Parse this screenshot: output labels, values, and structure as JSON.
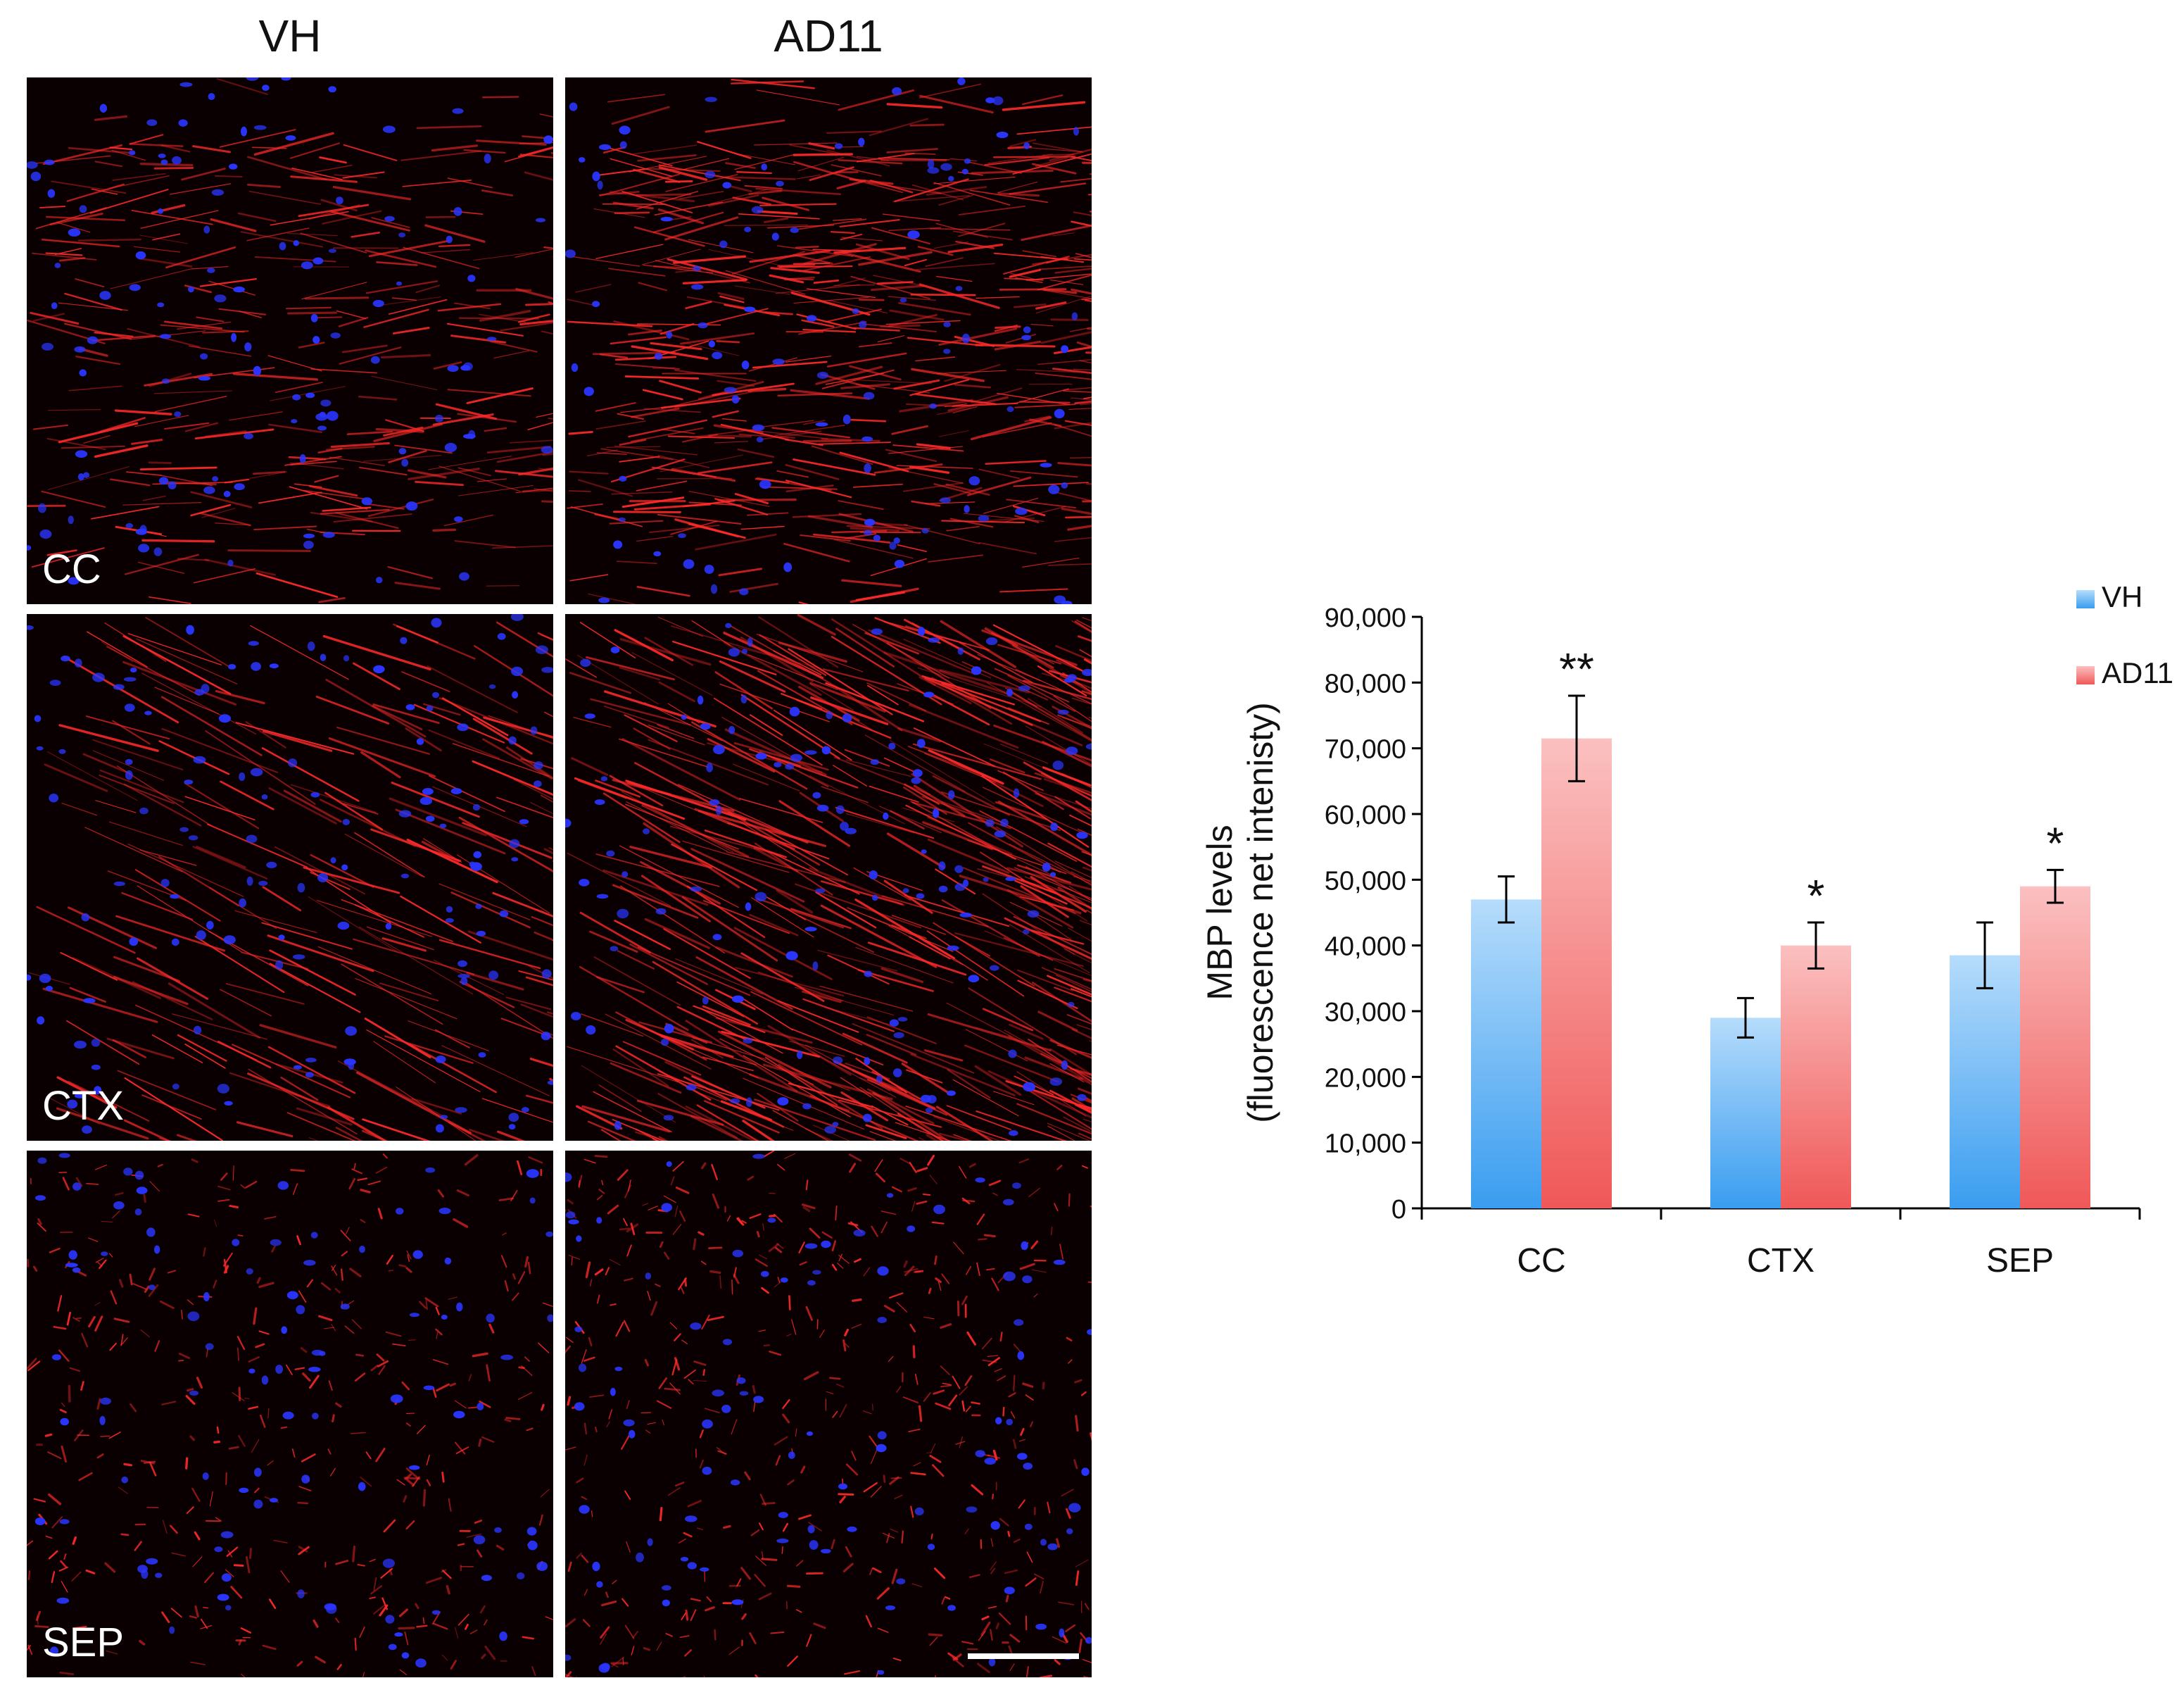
{
  "micrographs": {
    "columns": [
      "VH",
      "AD11"
    ],
    "rows": [
      "CC",
      "CTX",
      "SEP"
    ],
    "stain_colors": {
      "fiber": "#ff2a2a",
      "nuclei": "#2a35ff",
      "background": "#0a0002"
    },
    "tiles": [
      {
        "row": "CC",
        "column": "VH",
        "fiber_density": 0.55,
        "nuclei_density": 0.7,
        "pattern": "horizontal-band"
      },
      {
        "row": "CC",
        "column": "AD11",
        "fiber_density": 0.95,
        "nuclei_density": 0.6,
        "pattern": "horizontal-band"
      },
      {
        "row": "CTX",
        "column": "VH",
        "fiber_density": 0.35,
        "nuclei_density": 0.8,
        "pattern": "diagonal"
      },
      {
        "row": "CTX",
        "column": "AD11",
        "fiber_density": 0.8,
        "nuclei_density": 0.8,
        "pattern": "diagonal"
      },
      {
        "row": "SEP",
        "column": "VH",
        "fiber_density": 0.6,
        "nuclei_density": 0.6,
        "pattern": "dotted"
      },
      {
        "row": "SEP",
        "column": "AD11",
        "fiber_density": 0.75,
        "nuclei_density": 0.6,
        "pattern": "dotted"
      }
    ]
  },
  "chart_data": {
    "type": "bar",
    "categories": [
      "CC",
      "CTX",
      "SEP"
    ],
    "series": [
      {
        "name": "VH",
        "values": [
          47000,
          29000,
          38500
        ],
        "errors": [
          3500,
          3000,
          5000
        ],
        "color": "#3a9df0",
        "color_light": "#b6dcfb"
      },
      {
        "name": "AD11",
        "values": [
          71500,
          40000,
          49000
        ],
        "errors": [
          6500,
          3500,
          2500
        ],
        "color": "#f05858",
        "color_light": "#fbc0c0"
      }
    ],
    "significance": [
      {
        "category": "CC",
        "series": "AD11",
        "mark": "**"
      },
      {
        "category": "CTX",
        "series": "AD11",
        "mark": "*"
      },
      {
        "category": "SEP",
        "series": "AD11",
        "mark": "*"
      }
    ],
    "ylabel_lines": [
      "MBP levels",
      "(fluorescence net intenisty)"
    ],
    "ylim": [
      0,
      90000
    ],
    "yticks": [
      0,
      10000,
      20000,
      30000,
      40000,
      50000,
      60000,
      70000,
      80000,
      90000
    ],
    "ytick_labels": [
      "0",
      "10,000",
      "20,000",
      "30,000",
      "40,000",
      "50,000",
      "60,000",
      "70,000",
      "80,000",
      "90,000"
    ],
    "grid": false,
    "legend_placement": "top-right",
    "title": "",
    "xlabel": ""
  }
}
